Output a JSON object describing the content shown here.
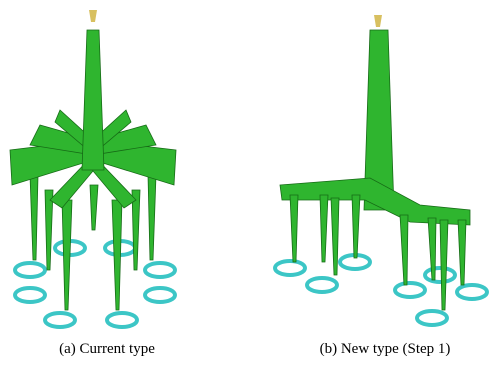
{
  "figures": [
    {
      "caption": "(a) Current type"
    },
    {
      "caption": "(b) New type (Step 1)"
    }
  ]
}
